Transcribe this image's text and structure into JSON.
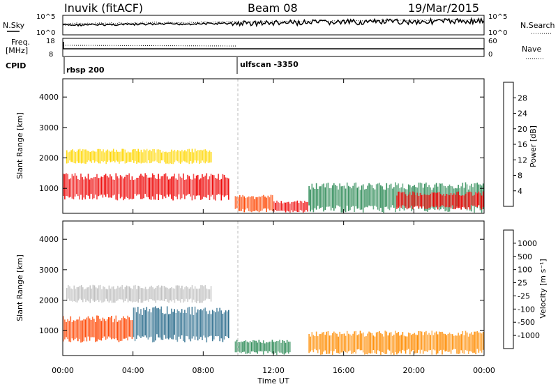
{
  "header": {
    "station": "Inuvik (fitACF)",
    "beam": "Beam 08",
    "date": "19/Mar/2015"
  },
  "top_panels": {
    "nsky_label": "N.Sky",
    "nsearch_label": "N.Search",
    "freq_label_line1": "Freq.",
    "freq_label_line2": "[MHz]",
    "nave_label": "Nave",
    "cpid_label": "CPID",
    "nsky_ticks": [
      "10^5",
      "10^0"
    ],
    "nsearch_ticks": [
      "10^5",
      "10^0"
    ],
    "freq_ticks": [
      "18",
      "8"
    ],
    "nave_ticks": [
      "60",
      "0"
    ]
  },
  "cpid": {
    "segments": [
      {
        "label": "rbsp 200",
        "start_hour": 0
      },
      {
        "label": "ulfscan -3350",
        "start_hour": 10
      }
    ]
  },
  "chart_data": [
    {
      "type": "heatmap",
      "name": "Power",
      "ylabel": "Slant Range [km]",
      "xlabel": "",
      "xlim": [
        "00:00",
        "24:00"
      ],
      "ylim": [
        180,
        4600
      ],
      "x_ticks": [
        "00:00",
        "04:00",
        "08:00",
        "12:00",
        "16:00",
        "20:00",
        "00:00"
      ],
      "y_ticks": [
        "1000",
        "2000",
        "3000",
        "4000"
      ],
      "colorbar": {
        "label": "Power [dB]",
        "tick_labels": [
          "4",
          "8",
          "12",
          "16",
          "20",
          "24",
          "28"
        ],
        "colors": [
          "#0000ff",
          "#1f4fc8",
          "#2e8b57",
          "#9acd32",
          "#ffd700",
          "#ff8c00",
          "#ff4500",
          "#ee0000"
        ]
      },
      "regions": [
        {
          "t_start": 0.0,
          "t_end": 9.5,
          "r_start": 600,
          "r_end": 1500,
          "level": 28
        },
        {
          "t_start": 0.2,
          "t_end": 8.5,
          "r_start": 1800,
          "r_end": 2300,
          "level": 16
        },
        {
          "t_start": 9.8,
          "t_end": 12.0,
          "r_start": 200,
          "r_end": 800,
          "level": 24
        },
        {
          "t_start": 12.0,
          "t_end": 14.0,
          "r_start": 200,
          "r_end": 600,
          "level": 28
        },
        {
          "t_start": 14.0,
          "t_end": 24.0,
          "r_start": 200,
          "r_end": 1200,
          "level": 8
        },
        {
          "t_start": 19.0,
          "t_end": 24.0,
          "r_start": 300,
          "r_end": 900,
          "level": 28
        }
      ]
    },
    {
      "type": "heatmap",
      "name": "Velocity",
      "ylabel": "Slant Range [km]",
      "xlabel": "Time UT",
      "xlim": [
        "00:00",
        "24:00"
      ],
      "ylim": [
        180,
        4600
      ],
      "x_ticks": [
        "00:00",
        "04:00",
        "08:00",
        "12:00",
        "16:00",
        "20:00",
        "00:00"
      ],
      "y_ticks": [
        "1000",
        "2000",
        "3000",
        "4000"
      ],
      "colorbar": {
        "label": "Velocity [m s⁻¹]",
        "tick_labels": [
          "1000",
          "500",
          "100",
          "25",
          "-25",
          "-100",
          "-500",
          "-1000"
        ],
        "colors": [
          "#1f3fcf",
          "#2e6e8e",
          "#2e8b57",
          "#3fbf3f",
          "#bfbfbf",
          "#ffd700",
          "#ff8c00",
          "#ff4500",
          "#ee0000"
        ]
      },
      "regions": [
        {
          "t_start": 0.0,
          "t_end": 4.0,
          "r_start": 600,
          "r_end": 1500,
          "level": -500
        },
        {
          "t_start": 0.2,
          "t_end": 8.5,
          "r_start": 1900,
          "r_end": 2500,
          "level": 0
        },
        {
          "t_start": 4.0,
          "t_end": 9.5,
          "r_start": 600,
          "r_end": 1800,
          "level": 500
        },
        {
          "t_start": 9.8,
          "t_end": 13.0,
          "r_start": 200,
          "r_end": 700,
          "level": 100
        },
        {
          "t_start": 14.0,
          "t_end": 24.0,
          "r_start": 200,
          "r_end": 1000,
          "level": -100
        }
      ]
    }
  ]
}
